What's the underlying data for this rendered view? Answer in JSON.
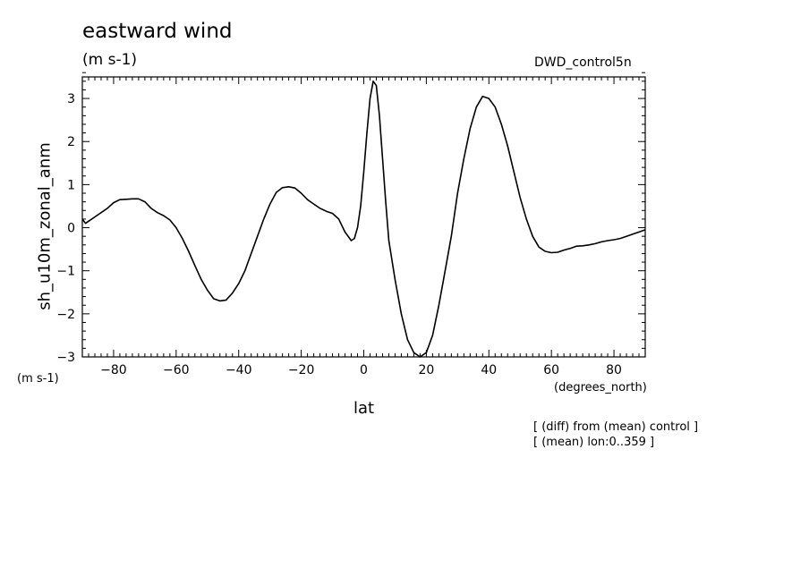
{
  "header": {
    "title": "eastward wind",
    "units": "(m s-1)",
    "source": "DWD_control5n"
  },
  "axes": {
    "y_units": "(m s-1)",
    "x_units": "(degrees_north)",
    "x_title": "lat",
    "y_title": "sh_u10m_zonal_anm"
  },
  "notes": {
    "line1": "[ (diff) from (mean) control ]",
    "line2": "[ (mean) lon:0..359 ]"
  },
  "chart_data": {
    "type": "line",
    "title": "eastward wind",
    "xlabel": "lat",
    "ylabel": "sh_u10m_zonal_anm",
    "xlim": [
      -90,
      90
    ],
    "ylim": [
      -3,
      3.5
    ],
    "x_ticks": [
      -80,
      -60,
      -40,
      -20,
      0,
      20,
      40,
      60,
      80
    ],
    "y_ticks": [
      -3,
      -2,
      -1,
      0,
      1,
      2,
      3
    ],
    "grid": false,
    "series": [
      {
        "x": [
          -90,
          -89,
          -88,
          -86,
          -84,
          -82,
          -80,
          -78,
          -76,
          -74,
          -72,
          -70,
          -68,
          -66,
          -64,
          -62,
          -60,
          -58,
          -56,
          -54,
          -52,
          -50,
          -48,
          -46,
          -44,
          -42,
          -40,
          -38,
          -36,
          -34,
          -32,
          -30,
          -28,
          -26,
          -24,
          -22,
          -20,
          -18,
          -16,
          -14,
          -12,
          -10,
          -8,
          -6,
          -4,
          -3,
          -2,
          -1,
          0,
          1,
          2,
          3,
          4,
          5,
          6,
          7,
          8,
          10,
          12,
          14,
          16,
          18,
          20,
          22,
          24,
          26,
          28,
          30,
          32,
          34,
          36,
          38,
          40,
          42,
          44,
          46,
          48,
          50,
          52,
          54,
          56,
          58,
          60,
          62,
          64,
          66,
          68,
          70,
          72,
          74,
          76,
          78,
          80,
          82,
          84,
          86,
          88,
          90
        ],
        "values": [
          0.2,
          0.1,
          0.15,
          0.25,
          0.35,
          0.45,
          0.58,
          0.65,
          0.66,
          0.67,
          0.67,
          0.6,
          0.45,
          0.35,
          0.28,
          0.18,
          0.0,
          -0.25,
          -0.55,
          -0.88,
          -1.2,
          -1.45,
          -1.65,
          -1.7,
          -1.68,
          -1.52,
          -1.3,
          -1.0,
          -0.6,
          -0.2,
          0.2,
          0.55,
          0.82,
          0.93,
          0.95,
          0.92,
          0.8,
          0.65,
          0.55,
          0.45,
          0.38,
          0.33,
          0.2,
          -0.1,
          -0.3,
          -0.25,
          0.0,
          0.5,
          1.3,
          2.2,
          3.0,
          3.4,
          3.3,
          2.6,
          1.6,
          0.6,
          -0.3,
          -1.2,
          -2.0,
          -2.6,
          -2.9,
          -3.0,
          -2.9,
          -2.5,
          -1.8,
          -1.0,
          -0.2,
          0.8,
          1.6,
          2.3,
          2.8,
          3.05,
          3.0,
          2.8,
          2.4,
          1.9,
          1.3,
          0.7,
          0.2,
          -0.2,
          -0.45,
          -0.55,
          -0.58,
          -0.57,
          -0.52,
          -0.48,
          -0.43,
          -0.42,
          -0.4,
          -0.37,
          -0.33,
          -0.3,
          -0.28,
          -0.25,
          -0.2,
          -0.15,
          -0.1,
          -0.05
        ]
      }
    ]
  }
}
